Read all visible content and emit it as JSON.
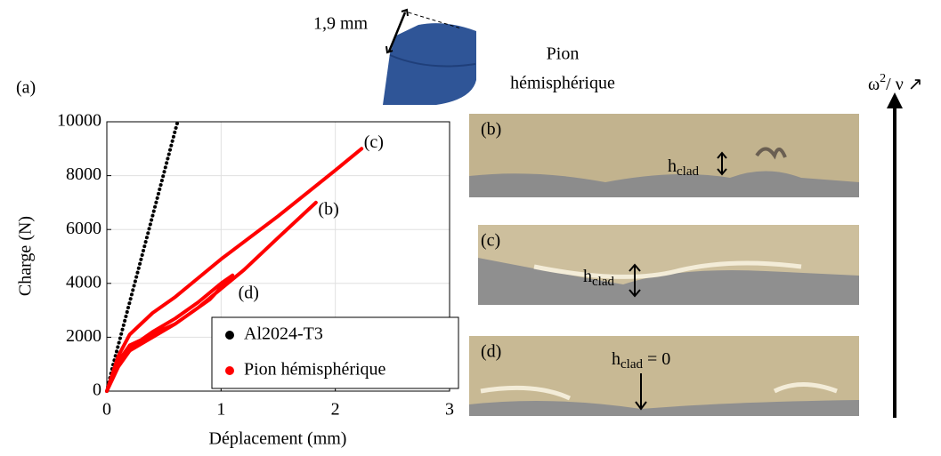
{
  "chart_data": {
    "type": "line",
    "panel_label": "(a)",
    "x_label": "Déplacement (mm)",
    "y_label": "Charge (N)",
    "xlim": [
      0,
      3
    ],
    "xticks": [
      0,
      1,
      2,
      3
    ],
    "ylim": [
      0,
      10000
    ],
    "yticks": [
      0,
      2000,
      4000,
      6000,
      8000,
      10000
    ],
    "grid": true,
    "legend": "lower right",
    "series": [
      {
        "name": "Al2024-T3",
        "color": "#000000",
        "x": [
          0,
          0.05,
          0.1,
          0.2,
          0.3,
          0.4,
          0.5,
          0.6,
          0.62
        ],
        "values": [
          0,
          900,
          1700,
          3300,
          4900,
          6500,
          8100,
          9700,
          10000
        ]
      },
      {
        "name": "Pion hémisphérique",
        "color": "#ff0000",
        "x": [
          0,
          0.1,
          0.2,
          0.4,
          0.6,
          0.8,
          1.0,
          1.1,
          0.9,
          0.6,
          0.4,
          0.2,
          0.1,
          0,
          null,
          0,
          0.1,
          0.2,
          0.4,
          0.6,
          0.8,
          1.0,
          1.2,
          1.5,
          1.83,
          null,
          0,
          0.1,
          0.2,
          0.4,
          0.6,
          0.8,
          1.0,
          1.5,
          2.0,
          2.23
        ],
        "values": [
          0,
          1000,
          1600,
          2200,
          2700,
          3300,
          4000,
          4300,
          3400,
          2500,
          2000,
          1500,
          900,
          0,
          null,
          0,
          1100,
          1700,
          2100,
          2500,
          3100,
          3800,
          4500,
          5700,
          7000,
          null,
          0,
          1300,
          2100,
          2900,
          3500,
          4200,
          4900,
          6500,
          8200,
          9000
        ]
      }
    ],
    "annotations": [
      {
        "text": "(c)",
        "x": 2.25,
        "y": 9200
      },
      {
        "text": "(b)",
        "x": 1.85,
        "y": 6700
      },
      {
        "text": "(d)",
        "x": 1.15,
        "y": 3600
      }
    ]
  },
  "tool": {
    "dimension": "1,9 mm",
    "name_line1": "Pion",
    "name_line2": "hémisphérique"
  },
  "micrographs": [
    {
      "label": "(b)",
      "h": "h",
      "sub": "clad",
      "suffix": ""
    },
    {
      "label": "(c)",
      "h": "h",
      "sub": "clad",
      "suffix": ""
    },
    {
      "label": "(d)",
      "h": "h",
      "sub": "clad",
      "suffix": " = 0"
    }
  ],
  "trend": {
    "base": "ω",
    "sup": "2",
    "rest": "/ ν ↗"
  }
}
